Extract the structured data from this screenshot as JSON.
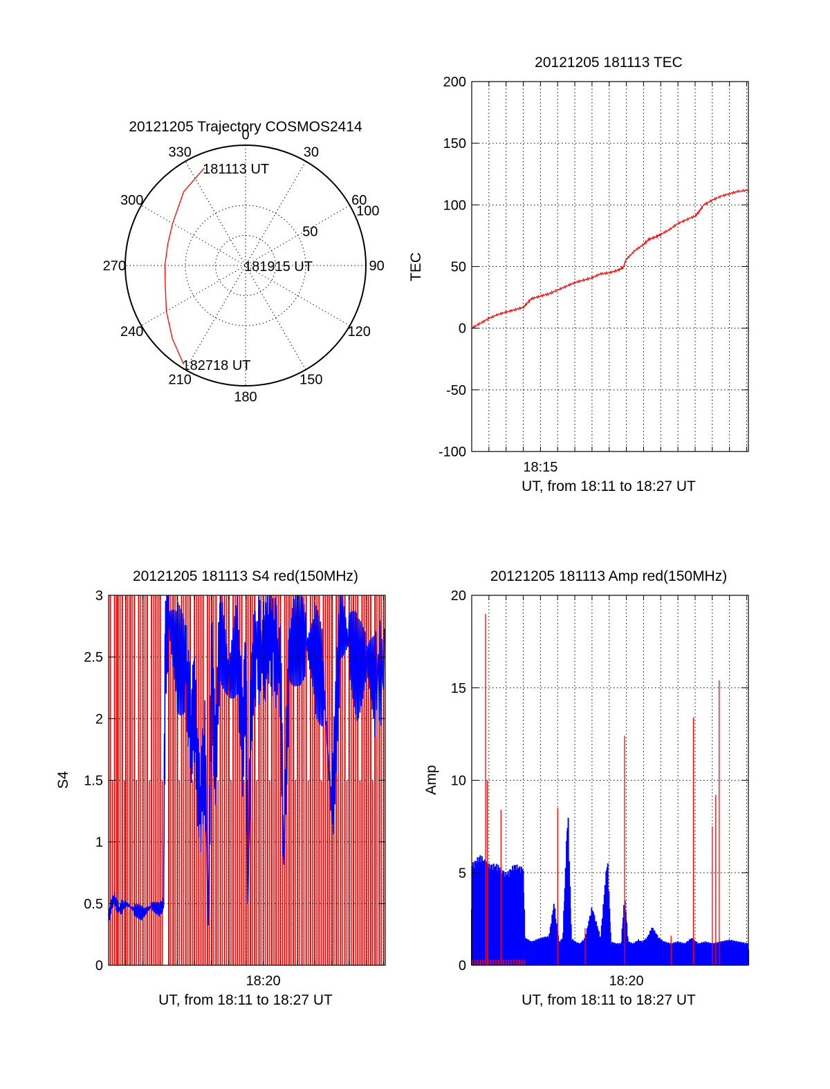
{
  "chart_data": [
    {
      "type": "polar",
      "title": "20121205 Trajectory COSMOS2414",
      "angle_labels": [
        "0",
        "30",
        "60",
        "90",
        "120",
        "150",
        "180",
        "210",
        "240",
        "270",
        "300",
        "330"
      ],
      "radial_labels": [
        "50",
        "100"
      ],
      "rlim": [
        0,
        100
      ],
      "grid": true,
      "series": [
        {
          "color": "#ff0000",
          "points": [
            {
              "az": 337,
              "r": 88
            },
            {
              "az": 320,
              "r": 80
            },
            {
              "az": 300,
              "r": 70
            },
            {
              "az": 285,
              "r": 67
            },
            {
              "az": 270,
              "r": 67
            },
            {
              "az": 255,
              "r": 69
            },
            {
              "az": 240,
              "r": 76
            },
            {
              "az": 225,
              "r": 86
            },
            {
              "az": 212,
              "r": 97
            }
          ]
        }
      ],
      "annotations": [
        {
          "text": "181113 UT",
          "az": 337,
          "r": 88
        },
        {
          "text": "181915 UT",
          "az": 0,
          "r": 0
        },
        {
          "text": "182718 UT",
          "az": 212,
          "r": 97
        }
      ]
    },
    {
      "type": "line",
      "title": "20121205 181113 TEC",
      "xlabel": "UT, from 18:11 to 18:27 UT",
      "ylabel": "TEC",
      "xlim_min": [
        0,
        16.1
      ],
      "ylim": [
        -100,
        200
      ],
      "xticks": [
        {
          "label": "18:15",
          "x_min": 4
        }
      ],
      "yticks": [
        -100,
        -50,
        0,
        50,
        100,
        150,
        200
      ],
      "grid": true,
      "series": [
        {
          "color": "#ff0000",
          "x_min": [
            0,
            0.5,
            1,
            1.5,
            2,
            2.5,
            3,
            3.2,
            3.5,
            4,
            4.5,
            5,
            5.5,
            6,
            6.5,
            7,
            7.5,
            8,
            8.5,
            8.8,
            9,
            9.5,
            10,
            10.3,
            10.7,
            11,
            11.5,
            12,
            12.5,
            13,
            13.2,
            13.5,
            14,
            14.5,
            15,
            15.5,
            16.1
          ],
          "values": [
            0,
            4,
            8,
            11,
            13,
            15,
            17,
            20,
            24,
            26,
            28,
            31,
            34,
            37,
            39,
            41,
            44,
            45,
            47,
            49,
            56,
            63,
            68,
            72,
            74,
            76,
            80,
            85,
            88,
            91,
            94,
            100,
            104,
            107,
            109,
            111,
            112
          ]
        }
      ]
    },
    {
      "type": "line",
      "title": "20121205 181113 S4 red(150MHz)",
      "xlabel": "UT, from 18:11 to 18:27 UT",
      "ylabel": "S4",
      "xlim_min": [
        0,
        16.1
      ],
      "ylim": [
        0,
        3
      ],
      "xticks": [
        {
          "label": "18:20",
          "x_min": 9
        }
      ],
      "yticks": [
        "0",
        "0.5",
        "1",
        "1.5",
        "2",
        "2.5",
        "3"
      ],
      "grid": true,
      "series": [
        {
          "color": "#ff0000",
          "spike_x_min": [
            0.1,
            0.35,
            0.55,
            0.8,
            1.0,
            1.25,
            1.5,
            1.75,
            2.0,
            2.25,
            2.5,
            2.75,
            3.0,
            3.5,
            3.75,
            4.0,
            4.25,
            4.5,
            4.75,
            5.0,
            5.25,
            5.5,
            5.75,
            6.0,
            6.25,
            6.5,
            6.75,
            7.0,
            7.25,
            7.5,
            7.75,
            8.0,
            8.25,
            8.5,
            8.75,
            9.0,
            9.25,
            9.5,
            9.75,
            10.0,
            10.25,
            10.5,
            10.75,
            11.0,
            11.25,
            11.5,
            11.75,
            12.0,
            12.25,
            12.5,
            12.75,
            13.0,
            13.25,
            13.5,
            13.75,
            14.0,
            14.25,
            14.5,
            14.75,
            15.0,
            15.25,
            15.5,
            15.75,
            16.0
          ],
          "spike_value": 3
        },
        {
          "color": "#0000ff",
          "x_min": [
            0,
            0.3,
            0.6,
            1.0,
            1.5,
            2.0,
            2.5,
            3.0,
            3.2,
            3.3,
            3.5,
            4.0,
            4.5,
            4.8,
            5.0,
            5.3,
            5.6,
            5.8,
            6.0,
            6.2,
            6.5,
            7.0,
            7.5,
            7.8,
            8.0,
            8.1,
            8.3,
            8.6,
            9.0,
            9.3,
            9.6,
            10.0,
            10.2,
            10.5,
            11.0,
            11.5,
            12.0,
            12.5,
            13.0,
            13.5,
            14.0,
            14.5,
            15.0,
            15.5,
            16.1
          ],
          "values": [
            0.4,
            0.55,
            0.45,
            0.5,
            0.45,
            0.42,
            0.48,
            0.45,
            0.5,
            2.6,
            2.8,
            2.5,
            2.4,
            1.9,
            2.1,
            1.2,
            1.7,
            0.35,
            2.5,
            1.6,
            2.7,
            2.3,
            2.6,
            1.8,
            2.4,
            0.45,
            2.2,
            2.6,
            2.5,
            2.7,
            2.6,
            2.4,
            0.8,
            2.5,
            2.7,
            2.6,
            2.5,
            2.3,
            1.2,
            2.8,
            2.6,
            2.4,
            2.5,
            2.3,
            2.4
          ]
        }
      ]
    },
    {
      "type": "line",
      "title": "20121205 181113 Amp red(150MHz)",
      "xlabel": "UT, from 18:11 to 18:27 UT",
      "ylabel": "Amp",
      "xlim_min": [
        0,
        16.1
      ],
      "ylim": [
        0,
        20
      ],
      "xticks": [
        {
          "label": "18:20",
          "x_min": 9
        }
      ],
      "yticks": [
        0,
        5,
        10,
        15,
        20
      ],
      "grid": true,
      "series": [
        {
          "color": "#0000ff",
          "envelope_x_min": [
            0,
            0.5,
            1.0,
            1.5,
            2.0,
            2.5,
            3.0,
            3.1,
            3.5,
            4.0,
            4.5,
            4.8,
            4.9,
            5.1,
            5.3,
            5.6,
            5.8,
            6.0,
            6.3,
            6.6,
            7.0,
            7.5,
            7.9,
            8.1,
            8.4,
            8.7,
            8.9,
            9.1,
            9.4,
            9.7,
            9.9,
            10.2,
            10.5,
            10.9,
            11.2,
            11.6,
            12.0,
            12.4,
            12.8,
            13.2,
            13.6,
            14.0,
            14.5,
            15.0,
            15.5,
            16.1
          ],
          "envelope_max": [
            5.5,
            6.0,
            5.5,
            5.5,
            5.0,
            5.5,
            5.3,
            1.5,
            1.3,
            1.5,
            1.6,
            3.5,
            2.5,
            1.3,
            1.5,
            8.7,
            1.5,
            1.3,
            1.2,
            1.5,
            3.2,
            1.5,
            6.0,
            1.3,
            1.2,
            1.2,
            3.8,
            1.3,
            1.2,
            1.4,
            1.3,
            1.5,
            2.1,
            1.5,
            1.3,
            1.2,
            1.3,
            1.2,
            1.5,
            1.2,
            1.3,
            1.2,
            1.3,
            1.4,
            1.3,
            1.2
          ]
        },
        {
          "color": "#ff0000",
          "spikes": [
            {
              "x_min": 0.8,
              "value": 19
            },
            {
              "x_min": 0.9,
              "value": 10
            },
            {
              "x_min": 1.7,
              "value": 8.4
            },
            {
              "x_min": 5.0,
              "value": 8.5
            },
            {
              "x_min": 6.6,
              "value": 2.0
            },
            {
              "x_min": 8.9,
              "value": 12.4
            },
            {
              "x_min": 11.6,
              "value": 1.6
            },
            {
              "x_min": 12.9,
              "value": 13.4
            },
            {
              "x_min": 14.0,
              "value": 7.5
            },
            {
              "x_min": 14.2,
              "value": 9.2
            },
            {
              "x_min": 14.4,
              "value": 15.4
            }
          ]
        }
      ]
    }
  ]
}
